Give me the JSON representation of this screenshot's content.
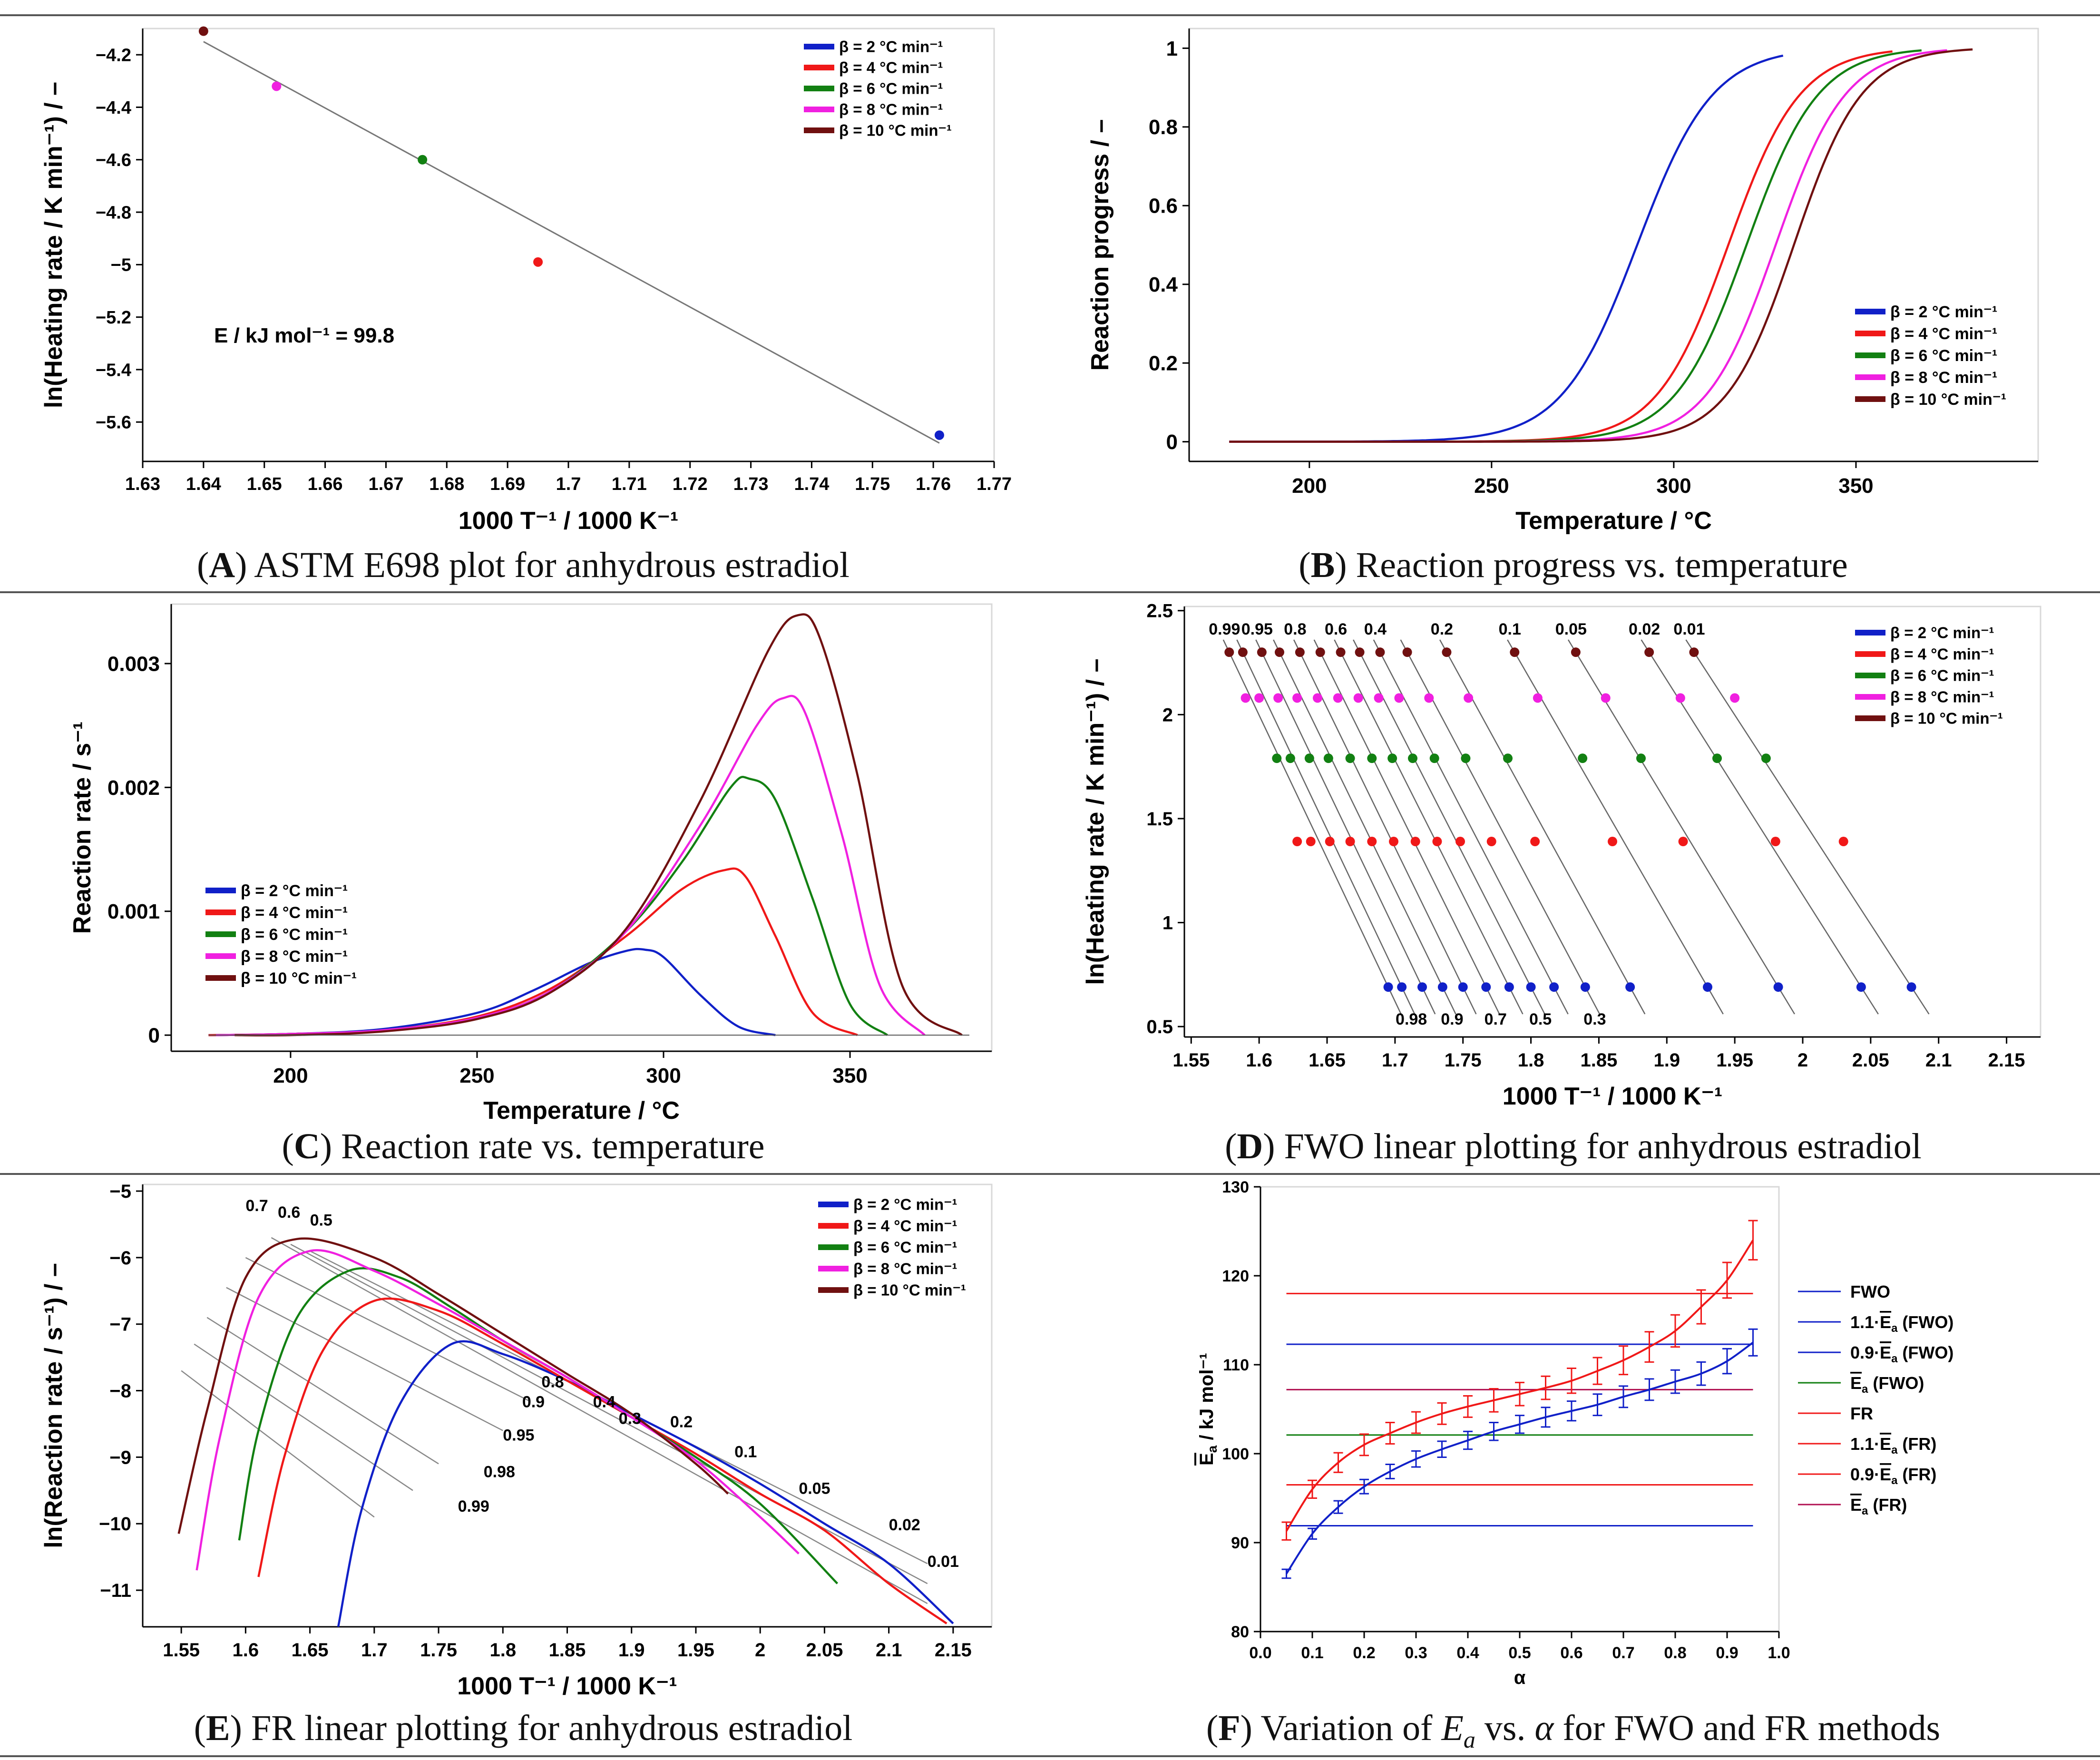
{
  "legend_labels": [
    "β =   2 °C min⁻¹",
    "β =   4 °C min⁻¹",
    "β =   6 °C min⁻¹",
    "β =   8 °C min⁻¹",
    "β = 10 °C min⁻¹"
  ],
  "series_colors": [
    "#1020c8",
    "#f01818",
    "#128012",
    "#f020e0",
    "#701010"
  ],
  "panels": [
    {
      "id": "A",
      "letter": "A",
      "caption": ") ASTM E698 plot for anhydrous estradiol",
      "annotation": "E / kJ mol⁻¹ = 99.8"
    },
    {
      "id": "B",
      "letter": "B",
      "caption": ") Reaction progress vs. temperature"
    },
    {
      "id": "C",
      "letter": "C",
      "caption": ") Reaction rate vs. temperature"
    },
    {
      "id": "D",
      "letter": "D",
      "caption": ") FWO linear plotting for anhydrous estradiol"
    },
    {
      "id": "E",
      "letter": "E",
      "caption": ") FR linear plotting for anhydrous estradiol"
    },
    {
      "id": "F",
      "letter": "F",
      "caption_pre": ") Variation of ",
      "caption_em": "E",
      "caption_sub": "a",
      "caption_mid": " vs. ",
      "caption_alpha": "α",
      "caption_post": " for FWO and FR methods"
    }
  ],
  "chart_data": [
    {
      "id": "A",
      "type": "scatter",
      "xlabel": "1000 T⁻¹ / 1000 K⁻¹",
      "ylabel": "ln(Heating rate / K min⁻¹) / –",
      "xlim": [
        1.63,
        1.77
      ],
      "ylim": [
        -5.75,
        -4.1
      ],
      "xticks": [
        "1.63",
        "1.64",
        "1.65",
        "1.66",
        "1.67",
        "1.68",
        "1.69",
        "1.7",
        "1.71",
        "1.72",
        "1.73",
        "1.74",
        "1.75",
        "1.76",
        "1.77"
      ],
      "yticks": [
        "-4.2",
        "-4.4",
        "-4.6",
        "-4.8",
        "-5",
        "-5.2",
        "-5.4",
        "-5.6"
      ],
      "points": [
        {
          "x": 1.761,
          "y": -5.65
        },
        {
          "x": 1.695,
          "y": -4.99
        },
        {
          "x": 1.676,
          "y": -4.6
        },
        {
          "x": 1.652,
          "y": -4.32
        },
        {
          "x": 1.64,
          "y": -4.11
        }
      ],
      "fit_line": [
        [
          1.64,
          -4.15
        ],
        [
          1.761,
          -5.68
        ]
      ]
    },
    {
      "id": "B",
      "type": "line",
      "xlabel": "Temperature / °C",
      "ylabel": "Reaction progress / –",
      "xlim": [
        167,
        400
      ],
      "ylim": [
        -0.05,
        1.05
      ],
      "xticks": [
        "200",
        "250",
        "300",
        "350"
      ],
      "yticks": [
        "0",
        "0.2",
        "0.4",
        "0.6",
        "0.8",
        "1"
      ],
      "series": [
        {
          "name": "β = 2",
          "t_half": 290,
          "width": 19,
          "t_start": 178,
          "t_end": 330
        },
        {
          "name": "β = 4",
          "t_half": 315,
          "width": 18,
          "t_start": 178,
          "t_end": 360
        },
        {
          "name": "β = 6",
          "t_half": 320,
          "width": 18,
          "t_start": 178,
          "t_end": 368
        },
        {
          "name": "β = 8",
          "t_half": 328,
          "width": 17.5,
          "t_start": 178,
          "t_end": 375
        },
        {
          "name": "β = 10",
          "t_half": 333,
          "width": 17,
          "t_start": 178,
          "t_end": 382
        }
      ]
    },
    {
      "id": "C",
      "type": "line",
      "xlabel": "Temperature / °C",
      "ylabel": "Reaction rate / s⁻¹",
      "xlim": [
        168,
        388
      ],
      "ylim": [
        -0.00013,
        0.00348
      ],
      "xticks": [
        "200",
        "250",
        "300",
        "350"
      ],
      "yticks": [
        "0",
        "0.001",
        "0.002",
        "0.003"
      ],
      "series": [
        {
          "name": "β = 2",
          "x": [
            178,
            200,
            225,
            250,
            265,
            280,
            290,
            295,
            300,
            310,
            320,
            330
          ],
          "y": [
            0,
            1e-05,
            5e-05,
            0.00018,
            0.00036,
            0.00058,
            0.00068,
            0.00069,
            0.00063,
            0.00032,
            7e-05,
            0
          ]
        },
        {
          "name": "β = 4",
          "x": [
            178,
            200,
            225,
            250,
            270,
            290,
            305,
            316,
            322,
            330,
            340,
            352
          ],
          "y": [
            0,
            1e-05,
            4e-05,
            0.00015,
            0.00038,
            0.0008,
            0.00118,
            0.00133,
            0.00128,
            0.0008,
            0.00018,
            0
          ]
        },
        {
          "name": "β = 6",
          "x": [
            180,
            200,
            225,
            250,
            270,
            290,
            305,
            318,
            323,
            330,
            340,
            350,
            360
          ],
          "y": [
            0,
            1e-05,
            4e-05,
            0.00014,
            0.00036,
            0.00084,
            0.0014,
            0.002,
            0.00207,
            0.0019,
            0.0011,
            0.00025,
            0
          ]
        },
        {
          "name": "β = 8",
          "x": [
            180,
            200,
            225,
            250,
            270,
            290,
            310,
            325,
            332,
            338,
            348,
            358,
            370
          ],
          "y": [
            0,
            1e-05,
            4e-05,
            0.00014,
            0.00036,
            0.00084,
            0.0017,
            0.0025,
            0.00272,
            0.0026,
            0.0016,
            0.0004,
            0
          ]
        },
        {
          "name": "β = 10",
          "x": [
            185,
            200,
            225,
            250,
            270,
            290,
            310,
            328,
            336,
            342,
            352,
            364,
            380
          ],
          "y": [
            0,
            0,
            3e-05,
            0.00013,
            0.00035,
            0.00086,
            0.0019,
            0.0031,
            0.00339,
            0.0032,
            0.0021,
            0.0004,
            0
          ]
        }
      ]
    },
    {
      "id": "D",
      "type": "scatter",
      "xlabel": "1000 T⁻¹ / 1000 K⁻¹",
      "ylabel": "ln(Heating rate / K min⁻¹) / –",
      "xlim": [
        1.545,
        2.175
      ],
      "ylim": [
        0.45,
        2.52
      ],
      "xticks": [
        "1.55",
        "1.6",
        "1.65",
        "1.7",
        "1.75",
        "1.8",
        "1.85",
        "1.9",
        "1.95",
        "2",
        "2.05",
        "2.1",
        "2.15"
      ],
      "yticks": [
        "0.5",
        "1",
        "1.5",
        "2",
        "2.5"
      ],
      "levels_y": [
        0.69,
        1.39,
        1.79,
        2.08,
        2.3
      ],
      "alpha_x": {
        "0.99": [
          1.695,
          1.628,
          1.613,
          1.59,
          1.578
        ],
        "0.98": [
          1.705,
          1.638,
          1.623,
          1.6,
          1.588
        ],
        "0.95": [
          1.72,
          1.652,
          1.637,
          1.614,
          1.602
        ],
        "0.9": [
          1.735,
          1.667,
          1.651,
          1.628,
          1.615
        ],
        "0.8": [
          1.75,
          1.683,
          1.667,
          1.643,
          1.63
        ],
        "0.7": [
          1.767,
          1.699,
          1.683,
          1.658,
          1.645
        ],
        "0.6": [
          1.784,
          1.715,
          1.698,
          1.673,
          1.66
        ],
        "0.5": [
          1.8,
          1.731,
          1.713,
          1.688,
          1.674
        ],
        "0.4": [
          1.817,
          1.748,
          1.729,
          1.703,
          1.689
        ],
        "0.3": [
          1.84,
          1.771,
          1.752,
          1.725,
          1.709
        ],
        "0.2": [
          1.873,
          1.803,
          1.783,
          1.754,
          1.738
        ],
        "0.1": [
          1.93,
          1.86,
          1.838,
          1.805,
          1.788
        ],
        "0.05": [
          1.982,
          1.912,
          1.881,
          1.855,
          1.833
        ],
        "0.02": [
          2.043,
          1.98,
          1.937,
          1.91,
          1.887
        ],
        "0.01": [
          2.08,
          2.03,
          1.973,
          1.95,
          1.92
        ]
      },
      "top_labels": [
        "0.99",
        "0.95",
        "0.8",
        "0.6",
        "0.4",
        "0.2",
        "0.1",
        "0.05",
        "0.02",
        "0.01"
      ],
      "bottom_labels": [
        "0.98",
        "0.9",
        "0.7",
        "0.5",
        "0.3"
      ]
    },
    {
      "id": "E",
      "type": "line",
      "xlabel": "1000 T⁻¹ / 1000 K⁻¹",
      "ylabel": "ln(Reaction rate / s⁻¹) / –",
      "xlim": [
        1.52,
        2.18
      ],
      "ylim": [
        -11.55,
        -4.9
      ],
      "xticks": [
        "1.55",
        "1.6",
        "1.65",
        "1.7",
        "1.75",
        "1.8",
        "1.85",
        "1.9",
        "1.95",
        "2",
        "2.05",
        "2.1",
        "2.15"
      ],
      "yticks": [
        "-5",
        "-6",
        "-7",
        "-8",
        "-9",
        "-10",
        "-11"
      ],
      "series": [
        {
          "name": "β = 2",
          "x": [
            1.672,
            1.69,
            1.72,
            1.76,
            1.8,
            1.85,
            1.9,
            1.95,
            2.0,
            2.05,
            2.1,
            2.15
          ],
          "y": [
            -11.55,
            -9.8,
            -8.2,
            -7.3,
            -7.45,
            -7.85,
            -8.35,
            -8.85,
            -9.4,
            -10,
            -10.6,
            -11.5
          ]
        },
        {
          "name": "β = 4",
          "x": [
            1.61,
            1.63,
            1.66,
            1.7,
            1.75,
            1.8,
            1.85,
            1.9,
            1.95,
            2.0,
            2.05,
            2.1,
            2.145
          ],
          "y": [
            -10.8,
            -9.0,
            -7.4,
            -6.65,
            -6.8,
            -7.3,
            -7.85,
            -8.4,
            -8.95,
            -9.55,
            -10.1,
            -10.9,
            -11.5
          ]
        },
        {
          "name": "β = 6",
          "x": [
            1.595,
            1.61,
            1.64,
            1.68,
            1.72,
            1.76,
            1.8,
            1.85,
            1.9,
            1.95,
            2.0,
            2.06
          ],
          "y": [
            -10.25,
            -8.6,
            -6.9,
            -6.2,
            -6.3,
            -6.75,
            -7.25,
            -7.8,
            -8.4,
            -9.0,
            -9.7,
            -10.9
          ]
        },
        {
          "name": "β = 8",
          "x": [
            1.562,
            1.58,
            1.61,
            1.65,
            1.7,
            1.75,
            1.8,
            1.85,
            1.9,
            1.95,
            2.0,
            2.03
          ],
          "y": [
            -10.7,
            -8.7,
            -6.6,
            -5.9,
            -6.2,
            -6.7,
            -7.25,
            -7.8,
            -8.4,
            -9.05,
            -9.9,
            -10.45
          ]
        },
        {
          "name": "β = 10",
          "x": [
            1.548,
            1.57,
            1.6,
            1.64,
            1.7,
            1.75,
            1.8,
            1.85,
            1.9,
            1.95,
            1.975
          ],
          "y": [
            -10.15,
            -8.3,
            -6.3,
            -5.72,
            -6.0,
            -6.55,
            -7.15,
            -7.75,
            -8.35,
            -9.1,
            -9.55
          ]
        }
      ],
      "iso_labels": [
        "0.7",
        "0.6",
        "0.5",
        "0.8",
        "0.9",
        "0.95",
        "0.98",
        "0.99",
        "0.4",
        "0.3",
        "0.2",
        "0.1",
        "0.05",
        "0.02",
        "0.01"
      ]
    },
    {
      "id": "F",
      "type": "line",
      "xlabel": "α",
      "ylabel_main": "E",
      "ylabel_sub": "a",
      "ylabel_unit": " / kJ mol⁻¹",
      "xlim": [
        0,
        1
      ],
      "ylim": [
        80,
        130
      ],
      "xticks": [
        "0.0",
        "0.1",
        "0.2",
        "0.3",
        "0.4",
        "0.5",
        "0.6",
        "0.7",
        "0.8",
        "0.9",
        "1.0"
      ],
      "yticks": [
        "80",
        "90",
        "100",
        "110",
        "120",
        "130"
      ],
      "alpha": [
        0.05,
        0.1,
        0.15,
        0.2,
        0.25,
        0.3,
        0.35,
        0.4,
        0.45,
        0.5,
        0.55,
        0.6,
        0.65,
        0.7,
        0.75,
        0.8,
        0.85,
        0.9,
        0.95
      ],
      "FWO": [
        86.5,
        91,
        94,
        96.3,
        98,
        99.4,
        100.5,
        101.5,
        102.5,
        103.3,
        104.1,
        104.8,
        105.5,
        106.4,
        107.2,
        108.1,
        109,
        110.4,
        112.5
      ],
      "FR": [
        91.3,
        96,
        99,
        101,
        102.3,
        103.5,
        104.5,
        105.3,
        106,
        106.7,
        107.4,
        108.2,
        109.3,
        110.5,
        112,
        113.8,
        116.5,
        119.5,
        124
      ],
      "FWO_err": [
        0.5,
        0.6,
        0.7,
        0.8,
        0.8,
        0.9,
        0.9,
        1,
        1,
        1,
        1.1,
        1.1,
        1.2,
        1.2,
        1.2,
        1.3,
        1.3,
        1.4,
        1.5
      ],
      "FR_err": [
        1,
        1,
        1.1,
        1.2,
        1.2,
        1.2,
        1.2,
        1.2,
        1.3,
        1.3,
        1.3,
        1.4,
        1.5,
        1.6,
        1.7,
        1.8,
        1.9,
        2,
        2.2
      ],
      "hlines": [
        {
          "name": "1.1·Ē (FWO)",
          "y": 112.3,
          "color": "#1020c8"
        },
        {
          "name": "0.9·Ē (FWO)",
          "y": 91.9,
          "color": "#1020c8"
        },
        {
          "name": "Ē (FWO)",
          "y": 102.1,
          "color": "#128012"
        },
        {
          "name": "1.1·Ē (FR)",
          "y": 118,
          "color": "#f01818"
        },
        {
          "name": "0.9·Ē (FR)",
          "y": 96.5,
          "color": "#f01818"
        },
        {
          "name": "Ē (FR)",
          "y": 107.2,
          "color": "#b01050"
        }
      ],
      "legend": [
        {
          "label": "FWO",
          "color": "#1020c8"
        },
        {
          "label": "1.1·",
          "bar": "E",
          "sub": "a",
          "post": " (FWO)",
          "color": "#1020c8"
        },
        {
          "label": "0.9·",
          "bar": "E",
          "sub": "a",
          "post": " (FWO)",
          "color": "#1020c8"
        },
        {
          "label": "",
          "bar": "E",
          "sub": "a",
          "post": " (FWO)",
          "color": "#128012"
        },
        {
          "label": "FR",
          "color": "#f01818"
        },
        {
          "label": "1.1·",
          "bar": "E",
          "sub": "a",
          "post": " (FR)",
          "color": "#f01818"
        },
        {
          "label": "0.9·",
          "bar": "E",
          "sub": "a",
          "post": " (FR)",
          "color": "#f01818"
        },
        {
          "label": "",
          "bar": "E",
          "sub": "a",
          "post": " (FR)",
          "color": "#b01050"
        }
      ]
    }
  ]
}
